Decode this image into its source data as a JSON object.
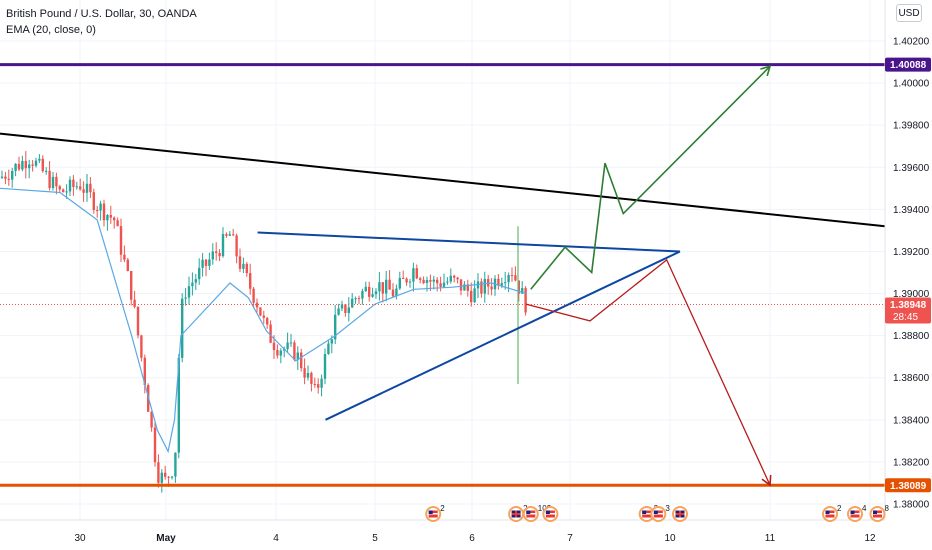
{
  "legend": {
    "symbol": "British Pound / U.S. Dollar, 30, OANDA",
    "indicator": "EMA (20, close, 0)"
  },
  "currency_button": "USD",
  "colors": {
    "candle_up": "#26a69a",
    "candle_down": "#ef5350",
    "ema": "#5aa9e6",
    "resistance": "#4a148c",
    "support": "#e65100",
    "trendline": "#000000",
    "triangle": "#0d47a1",
    "bull_path": "#2e7d32",
    "bear_path": "#b71c1c",
    "price_badge": "#ef5350"
  },
  "chart_data": {
    "type": "candlestick",
    "symbol": "GBPUSD",
    "timeframe": "30",
    "ylim": [
      1.3794,
      1.4029
    ],
    "yticks": [
      "1.40200",
      "1.40000",
      "1.39800",
      "1.39600",
      "1.39400",
      "1.39200",
      "1.39000",
      "1.38800",
      "1.38600",
      "1.38400",
      "1.38200",
      "1.38000"
    ],
    "ytick_values": [
      1.402,
      1.4,
      1.398,
      1.396,
      1.394,
      1.392,
      1.39,
      1.388,
      1.386,
      1.384,
      1.382,
      1.38
    ],
    "xlim": [
      29.2,
      12.1
    ],
    "xticks": [
      "30",
      "May",
      "4",
      "5",
      "6",
      "7",
      "10",
      "11",
      "12"
    ],
    "xtick_values": [
      30,
      31,
      4,
      5,
      6,
      7,
      10,
      11,
      12
    ],
    "x_axis_note": "day labels; x values are day-of-month positions (April 30 shown as 30, May 1 as May)",
    "price_path_x": [
      29.2,
      29.5,
      29.8,
      30.0,
      30.2,
      30.4,
      30.6,
      30.75,
      30.9,
      31.05,
      31.2,
      31.4,
      31.6,
      31.8,
      3.0,
      3.2,
      3.4,
      3.6,
      3.8,
      4.0,
      4.2,
      4.4,
      4.6,
      4.8,
      5.0,
      5.2,
      5.4,
      5.6,
      5.8,
      6.0,
      6.2,
      6.4,
      6.55
    ],
    "price_path_y": [
      1.3955,
      1.3965,
      1.3948,
      1.3952,
      1.3942,
      1.3935,
      1.39,
      1.386,
      1.3815,
      1.381,
      1.3818,
      1.3815,
      1.387,
      1.39,
      1.3928,
      1.3915,
      1.3905,
      1.3895,
      1.3882,
      1.3875,
      1.3872,
      1.3852,
      1.3888,
      1.3898,
      1.3905,
      1.39,
      1.3912,
      1.3905,
      1.3906,
      1.39,
      1.3905,
      1.3912,
      1.3895
    ],
    "ema": {
      "name": "EMA (20, close, 0)",
      "x": [
        29.2,
        29.8,
        30.2,
        30.6,
        30.9,
        31.1,
        31.4,
        31.7,
        3.0,
        3.4,
        3.8,
        4.2,
        4.6,
        5.0,
        5.4,
        5.8,
        6.2,
        6.55
      ],
      "y": [
        1.395,
        1.3948,
        1.3935,
        1.388,
        1.3835,
        1.3825,
        1.384,
        1.388,
        1.3905,
        1.3898,
        1.3882,
        1.3868,
        1.388,
        1.3895,
        1.3902,
        1.3903,
        1.3905,
        1.39
      ]
    },
    "annotations": {
      "resistance_line": 1.40088,
      "support_line": 1.38089,
      "current_price": "1.38948",
      "countdown": "28:45",
      "resistance_label": "1.40088",
      "support_label": "1.38089",
      "descending_trendline": {
        "x": [
          29.2,
          12.1
        ],
        "y": [
          1.3976,
          1.3932
        ]
      },
      "triangle_upper": {
        "x": [
          3.6,
          10.1
        ],
        "y": [
          1.3929,
          1.392
        ]
      },
      "triangle_lower": {
        "x": [
          4.5,
          10.1
        ],
        "y": [
          1.384,
          1.392
        ]
      },
      "bullish_scenario": {
        "x": [
          6.6,
          6.95,
          7.65,
          8.05,
          8.6,
          11.0
        ],
        "y": [
          1.3902,
          1.3922,
          1.391,
          1.3962,
          1.3938,
          1.4008
        ]
      },
      "bearish_scenario": {
        "x": [
          6.55,
          7.6,
          9.9,
          11.0
        ],
        "y": [
          1.3895,
          1.3887,
          1.3916,
          1.3809
        ]
      }
    },
    "events": {
      "badges": [
        {
          "x": 5.6,
          "flags": "us",
          "count": "2"
        },
        {
          "x": 6.45,
          "flags": "gb",
          "count": "2"
        },
        {
          "x": 6.6,
          "flags": "us",
          "count": "102"
        },
        {
          "x": 6.8,
          "flags": "us",
          "count": ""
        },
        {
          "x": 9.3,
          "flags": "us",
          "count": "2"
        },
        {
          "x": 9.65,
          "flags": "us",
          "count": "3"
        },
        {
          "x": 10.1,
          "flags": "gb",
          "count": ""
        },
        {
          "x": 11.6,
          "flags": "us",
          "count": "2"
        },
        {
          "x": 11.85,
          "flags": "us",
          "count": "4"
        },
        {
          "x": 12.05,
          "flags": "us",
          "count": "8"
        }
      ]
    }
  }
}
